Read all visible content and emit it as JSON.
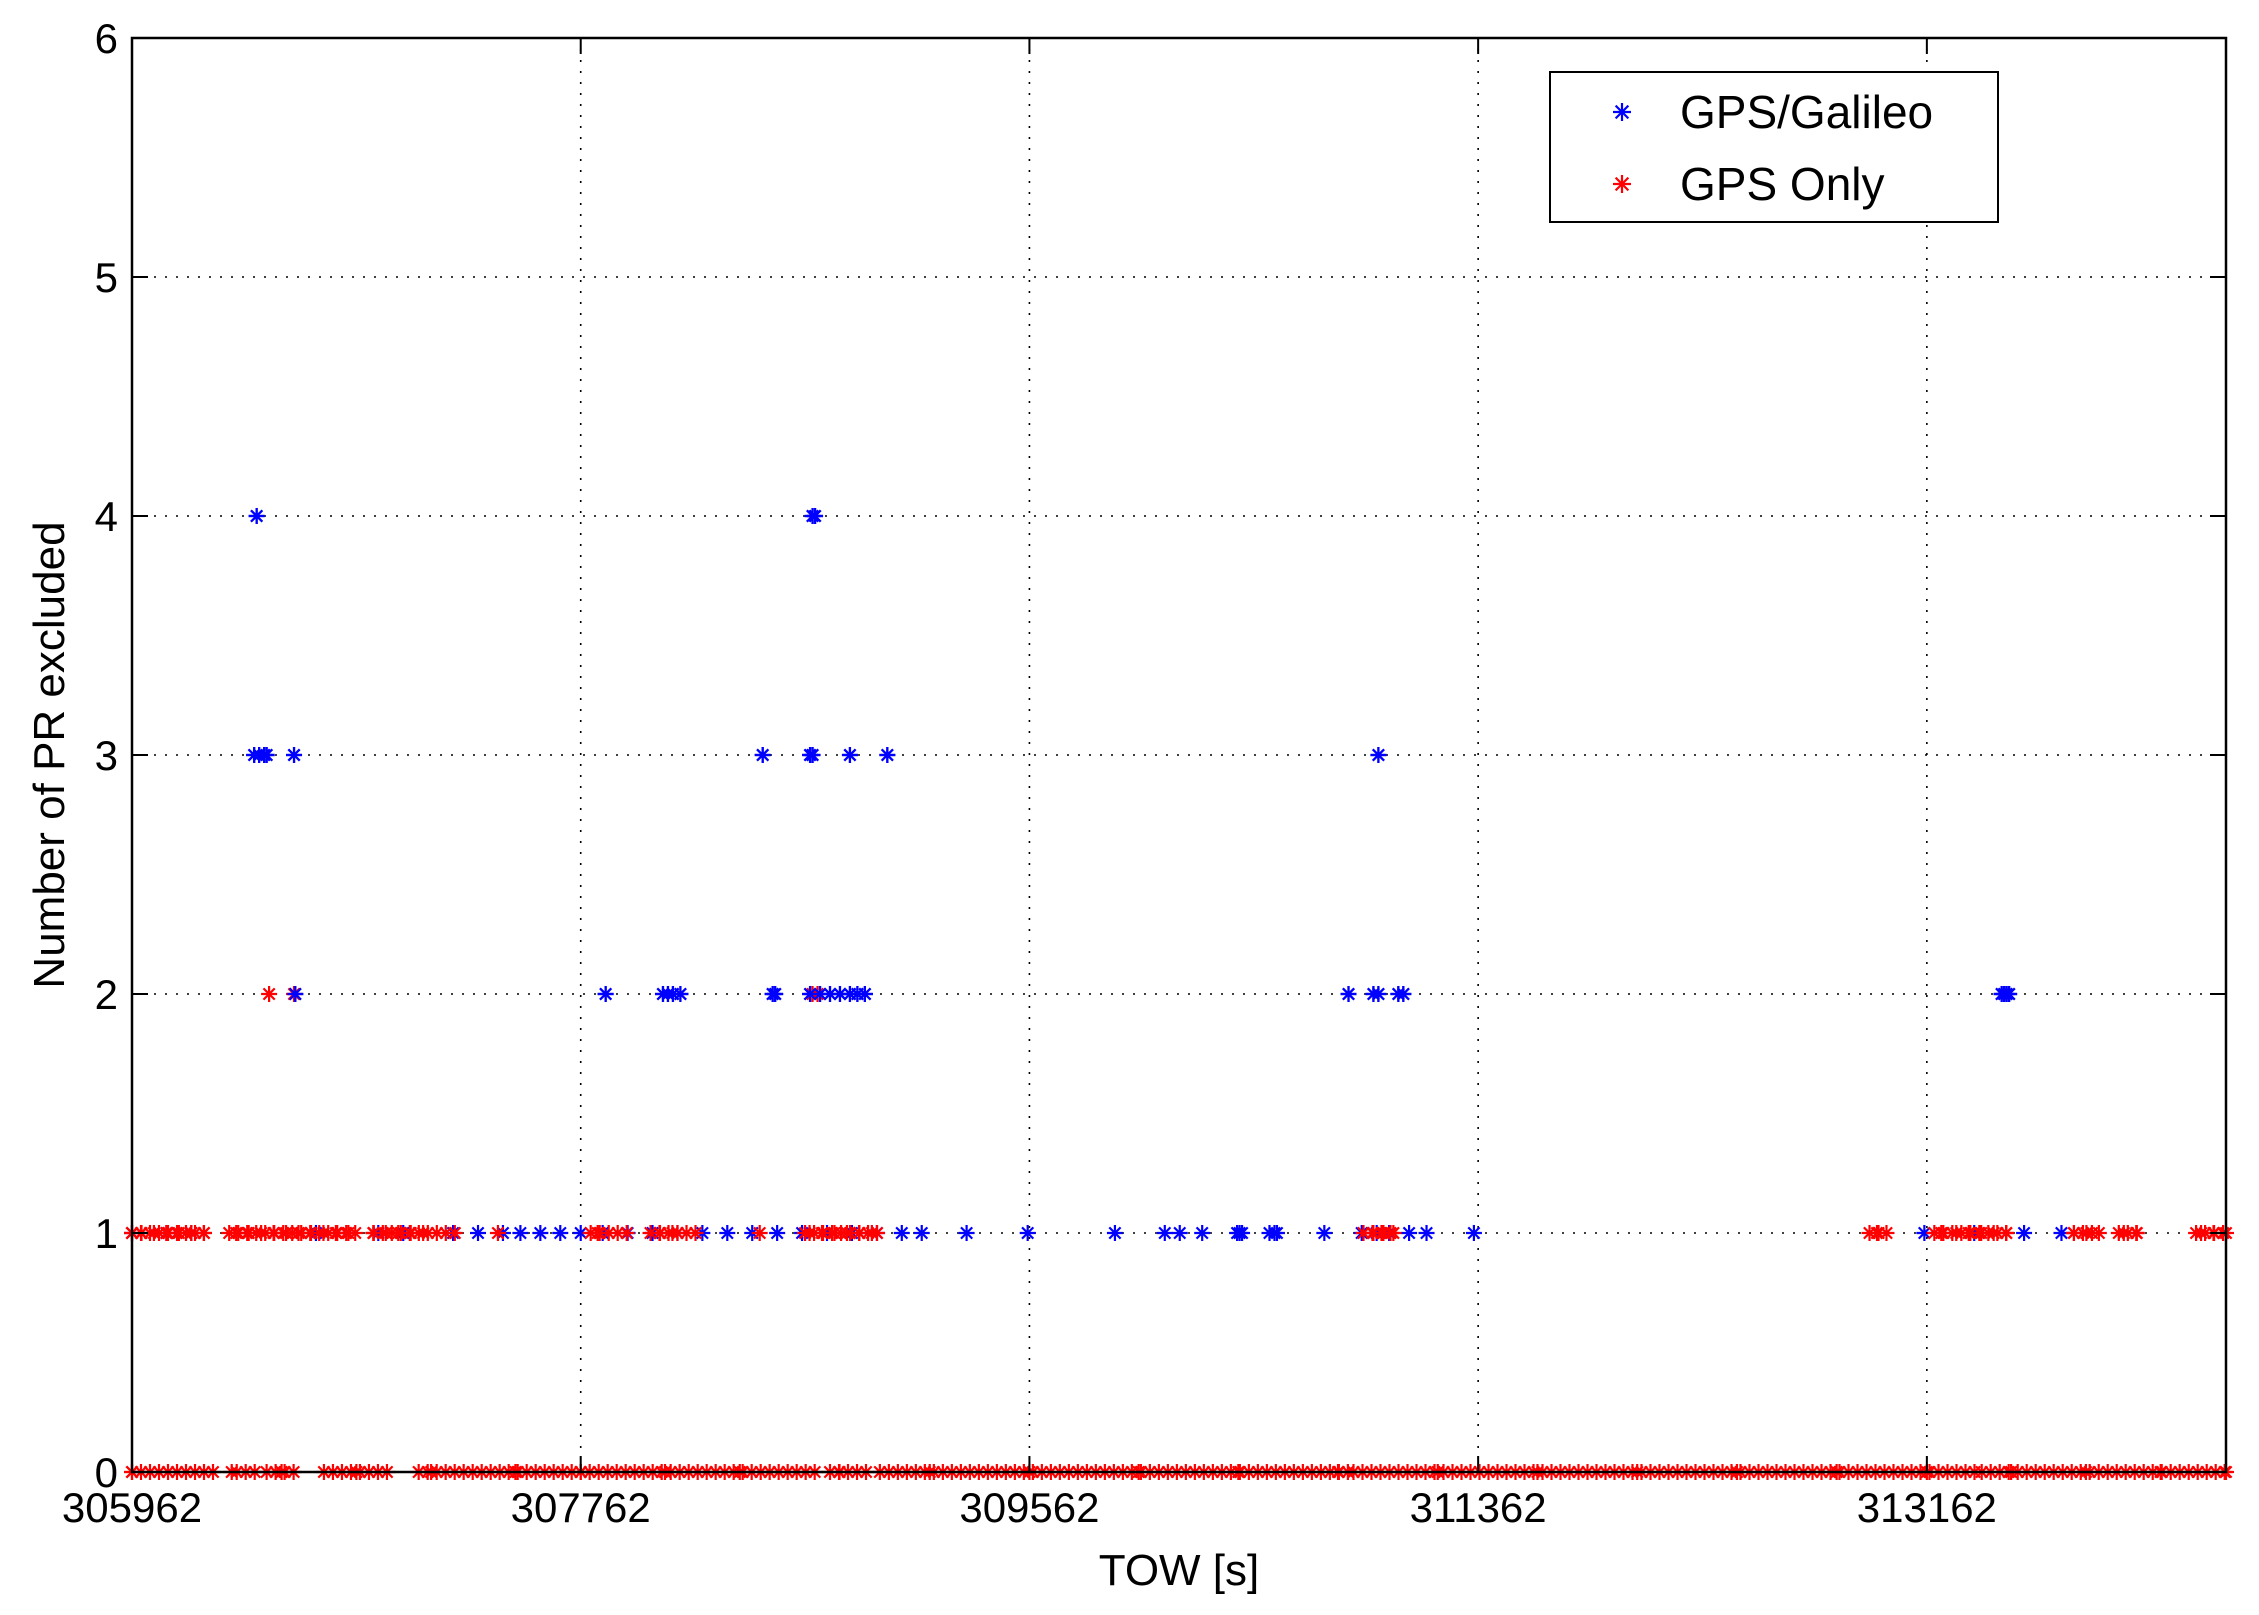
{
  "chart_data": {
    "type": "scatter",
    "title": "",
    "xlabel": "TOW [s]",
    "ylabel": "Number of PR excluded",
    "xlim": [
      305962,
      314362
    ],
    "ylim": [
      0,
      6
    ],
    "xticks": [
      305962,
      307762,
      309562,
      311362,
      313162
    ],
    "yticks": [
      0,
      1,
      2,
      3,
      4,
      5,
      6
    ],
    "grid": true,
    "legend_position": "top-right",
    "marker": "asterisk",
    "series": [
      {
        "name": "GPS/Galileo",
        "color": "#0000ff",
        "points": [
          [
            306462,
            4
          ],
          [
            306452,
            3
          ],
          [
            306472,
            3
          ],
          [
            306492,
            3
          ],
          [
            306502,
            3
          ],
          [
            306612,
            3
          ],
          [
            306617,
            2
          ],
          [
            305962,
            1
          ],
          [
            306100,
            1
          ],
          [
            306200,
            1
          ],
          [
            306700,
            1
          ],
          [
            306950,
            1
          ],
          [
            307050,
            1
          ],
          [
            307250,
            1
          ],
          [
            307350,
            1
          ],
          [
            307450,
            1
          ],
          [
            307520,
            1
          ],
          [
            307600,
            1
          ],
          [
            307680,
            1
          ],
          [
            307762,
            1
          ],
          [
            307850,
            1
          ],
          [
            307950,
            1
          ],
          [
            308050,
            1
          ],
          [
            308150,
            1
          ],
          [
            308250,
            1
          ],
          [
            308350,
            1
          ],
          [
            308450,
            1
          ],
          [
            308550,
            1
          ],
          [
            308650,
            1
          ],
          [
            308750,
            1
          ],
          [
            308850,
            1
          ],
          [
            308950,
            1
          ],
          [
            309050,
            1
          ],
          [
            309130,
            1
          ],
          [
            309310,
            1
          ],
          [
            309555,
            1
          ],
          [
            309905,
            1
          ],
          [
            310105,
            1
          ],
          [
            310165,
            1
          ],
          [
            310255,
            1
          ],
          [
            310395,
            1
          ],
          [
            310405,
            1
          ],
          [
            310415,
            1
          ],
          [
            310525,
            1
          ],
          [
            310545,
            1
          ],
          [
            310555,
            1
          ],
          [
            310745,
            1
          ],
          [
            310895,
            1
          ],
          [
            310955,
            1
          ],
          [
            311005,
            1
          ],
          [
            311085,
            1
          ],
          [
            311155,
            1
          ],
          [
            311345,
            1
          ],
          [
            313152,
            1
          ],
          [
            313352,
            1
          ],
          [
            313552,
            1
          ],
          [
            313702,
            1
          ],
          [
            307862,
            2
          ],
          [
            308092,
            2
          ],
          [
            308112,
            2
          ],
          [
            308132,
            2
          ],
          [
            308162,
            2
          ],
          [
            308532,
            2
          ],
          [
            308542,
            2
          ],
          [
            308682,
            2
          ],
          [
            308722,
            2
          ],
          [
            308762,
            2
          ],
          [
            308802,
            2
          ],
          [
            308842,
            2
          ],
          [
            308872,
            2
          ],
          [
            308902,
            2
          ],
          [
            310842,
            2
          ],
          [
            310942,
            2
          ],
          [
            310962,
            2
          ],
          [
            311042,
            2
          ],
          [
            311062,
            2
          ],
          [
            313462,
            2
          ],
          [
            313472,
            2
          ],
          [
            313482,
            2
          ],
          [
            313492,
            2
          ],
          [
            308492,
            3
          ],
          [
            308682,
            3
          ],
          [
            308692,
            3
          ],
          [
            308842,
            3
          ],
          [
            308992,
            3
          ],
          [
            308692,
            4
          ],
          [
            308702,
            4
          ],
          [
            310962,
            3
          ]
        ]
      },
      {
        "name": "GPS Only",
        "color": "#ff0000",
        "points": [
          [
            306512,
            2
          ],
          [
            306612,
            2
          ],
          [
            308692,
            2
          ],
          [
            308712,
            2
          ],
          [
            305962,
            1
          ],
          [
            306000,
            1
          ],
          [
            306050,
            1
          ],
          [
            306100,
            1
          ],
          [
            306150,
            1
          ],
          [
            306200,
            1
          ],
          [
            306250,
            1
          ],
          [
            306380,
            1
          ],
          [
            306430,
            1
          ],
          [
            306480,
            1
          ],
          [
            306530,
            1
          ],
          [
            306580,
            1
          ],
          [
            306630,
            1
          ],
          [
            306680,
            1
          ],
          [
            306730,
            1
          ],
          [
            306780,
            1
          ],
          [
            306830,
            1
          ],
          [
            306930,
            1
          ],
          [
            306980,
            1
          ],
          [
            307030,
            1
          ],
          [
            307080,
            1
          ],
          [
            307130,
            1
          ],
          [
            307430,
            1
          ],
          [
            307830,
            1
          ],
          [
            308080,
            1
          ],
          [
            308130,
            1
          ],
          [
            308480,
            1
          ],
          [
            308680,
            1
          ],
          [
            308730,
            1
          ],
          [
            308780,
            1
          ],
          [
            308830,
            1
          ],
          [
            308880,
            1
          ],
          [
            308930,
            1
          ],
          [
            310942,
            1
          ],
          [
            310982,
            1
          ],
          [
            311022,
            1
          ],
          [
            312962,
            1
          ],
          [
            313000,
            1
          ],
          [
            313220,
            1
          ],
          [
            313280,
            1
          ],
          [
            313330,
            1
          ],
          [
            313380,
            1
          ],
          [
            313430,
            1
          ],
          [
            313480,
            1
          ],
          [
            313752,
            1
          ],
          [
            313802,
            1
          ],
          [
            313852,
            1
          ],
          [
            313952,
            1
          ],
          [
            314002,
            1
          ],
          [
            314262,
            1
          ],
          [
            314312,
            1
          ],
          [
            314362,
            1
          ],
          [
            305962,
            0
          ],
          [
            306362,
            0
          ],
          [
            306562,
            0
          ],
          [
            306862,
            0
          ],
          [
            307162,
            0
          ],
          [
            307500,
            0
          ],
          [
            307762,
            0
          ],
          [
            308100,
            0
          ],
          [
            308400,
            0
          ],
          [
            308800,
            0
          ],
          [
            309162,
            0
          ],
          [
            309562,
            0
          ],
          [
            310000,
            0
          ],
          [
            310400,
            0
          ],
          [
            310800,
            0
          ],
          [
            311200,
            0
          ],
          [
            311600,
            0
          ],
          [
            312000,
            0
          ],
          [
            312400,
            0
          ],
          [
            312800,
            0
          ],
          [
            313162,
            0
          ],
          [
            313500,
            0
          ],
          [
            313800,
            0
          ],
          [
            314100,
            0
          ],
          [
            314362,
            0
          ]
        ],
        "dense_segments": [
          [
            305962,
            306312,
            0
          ],
          [
            306382,
            306462,
            0
          ],
          [
            306502,
            306632,
            0
          ],
          [
            306732,
            307012,
            0
          ],
          [
            307112,
            308712,
            0
          ],
          [
            308762,
            308932,
            0
          ],
          [
            308962,
            310842,
            0
          ],
          [
            310862,
            313362,
            0
          ],
          [
            313382,
            314362,
            0
          ],
          [
            305962,
            306262,
            1
          ],
          [
            306352,
            306862,
            1
          ],
          [
            306932,
            307262,
            1
          ],
          [
            307802,
            307952,
            1
          ],
          [
            308042,
            308232,
            1
          ],
          [
            308662,
            308962,
            1
          ],
          [
            310902,
            311042,
            1
          ],
          [
            312932,
            313002,
            1
          ],
          [
            313192,
            313502,
            1
          ],
          [
            313752,
            313852,
            1
          ],
          [
            313932,
            314032,
            1
          ],
          [
            314242,
            314362,
            1
          ]
        ]
      }
    ]
  }
}
